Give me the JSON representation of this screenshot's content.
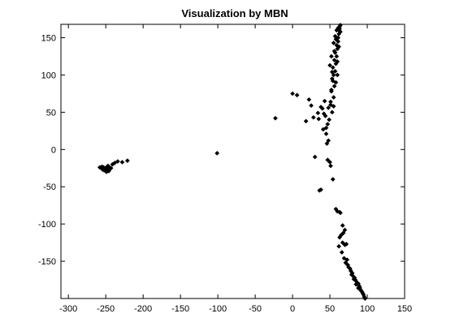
{
  "chart_data": {
    "type": "scatter",
    "title": "Visualization by MBN",
    "xlabel": "",
    "ylabel": "",
    "xlim": [
      -310,
      150
    ],
    "ylim": [
      -200,
      168
    ],
    "xticks": [
      -300,
      -250,
      -200,
      -150,
      -100,
      -50,
      0,
      50,
      100,
      150
    ],
    "yticks": [
      150,
      100,
      50,
      0,
      -50,
      -100,
      -150
    ],
    "xtick_labels": [
      "-300",
      "-250",
      "-200",
      "-150",
      "-100",
      "-50",
      "0",
      "50",
      "100",
      "150"
    ],
    "ytick_labels": [
      "150",
      "100",
      "50",
      "0",
      "-50",
      "-100",
      "-150"
    ],
    "grid": false,
    "marker": "diamond",
    "marker_color": "#000000",
    "series": [
      {
        "points": [
          [
            -258,
            -24
          ],
          [
            -256,
            -25
          ],
          [
            -255,
            -23
          ],
          [
            -254,
            -26
          ],
          [
            -253,
            -24
          ],
          [
            -252,
            -25
          ],
          [
            -251,
            -27
          ],
          [
            -250,
            -26
          ],
          [
            -249,
            -24
          ],
          [
            -248,
            -28
          ],
          [
            -247,
            -25
          ],
          [
            -246,
            -27
          ],
          [
            -245,
            -26
          ],
          [
            -252,
            -28
          ],
          [
            -250,
            -29
          ],
          [
            -248,
            -23
          ],
          [
            -246,
            -29
          ],
          [
            -244,
            -26
          ],
          [
            -247,
            -22
          ],
          [
            -243,
            -25
          ],
          [
            -241,
            -20
          ],
          [
            -238,
            -18
          ],
          [
            -234,
            -16
          ],
          [
            -228,
            -17
          ],
          [
            -221,
            -15
          ],
          [
            -254,
            -27
          ],
          [
            -249,
            -30
          ],
          [
            -245,
            -24
          ],
          [
            -101,
            -5
          ],
          [
            -23,
            42
          ],
          [
            0,
            75
          ],
          [
            6,
            73
          ],
          [
            18,
            38
          ],
          [
            22,
            67
          ],
          [
            25,
            59
          ],
          [
            28,
            43
          ],
          [
            30,
            -10
          ],
          [
            34,
            49
          ],
          [
            35,
            41
          ],
          [
            36,
            -55
          ],
          [
            38,
            -54
          ],
          [
            38,
            57
          ],
          [
            40,
            55
          ],
          [
            41,
            27
          ],
          [
            42,
            48
          ],
          [
            43,
            65
          ],
          [
            44,
            45
          ],
          [
            45,
            21
          ],
          [
            45,
            29
          ],
          [
            46,
            8
          ],
          [
            47,
            34
          ],
          [
            47,
            -14
          ],
          [
            48,
            12
          ],
          [
            48,
            56
          ],
          [
            49,
            40
          ],
          [
            50,
            -17
          ],
          [
            51,
            -22
          ],
          [
            51,
            60
          ],
          [
            52,
            80
          ],
          [
            53,
            50
          ],
          [
            53,
            95
          ],
          [
            54,
            -40
          ],
          [
            54,
            110
          ],
          [
            55,
            70
          ],
          [
            55,
            100
          ],
          [
            56,
            85
          ],
          [
            56,
            120
          ],
          [
            57,
            105
          ],
          [
            57,
            130
          ],
          [
            58,
            90
          ],
          [
            58,
            115
          ],
          [
            59,
            125
          ],
          [
            59,
            140
          ],
          [
            60,
            100
          ],
          [
            60,
            135
          ],
          [
            61,
            145
          ],
          [
            61,
            150
          ],
          [
            62,
            155
          ],
          [
            62,
            160
          ],
          [
            63,
            162
          ],
          [
            63,
            165
          ],
          [
            64,
            158
          ],
          [
            55,
            143
          ],
          [
            52,
            125
          ],
          [
            58,
            148
          ],
          [
            50,
            113
          ],
          [
            54,
            92
          ],
          [
            53,
            104
          ],
          [
            56,
            132
          ],
          [
            60,
            118
          ],
          [
            62,
            138
          ],
          [
            57,
            152
          ],
          [
            52,
            78
          ],
          [
            55,
            58
          ],
          [
            51,
            64
          ],
          [
            59,
            160
          ],
          [
            61,
            163
          ],
          [
            64,
            167
          ],
          [
            58,
            -80
          ],
          [
            60,
            -83
          ],
          [
            63,
            -84
          ],
          [
            64,
            -85
          ],
          [
            67,
            -102
          ],
          [
            68,
            -112
          ],
          [
            65,
            -115
          ],
          [
            63,
            -118
          ],
          [
            70,
            -108
          ],
          [
            67,
            -125
          ],
          [
            70,
            -128
          ],
          [
            62,
            -130
          ],
          [
            72,
            -127
          ],
          [
            66,
            -138
          ],
          [
            69,
            -146
          ],
          [
            73,
            -148
          ],
          [
            71,
            -152
          ],
          [
            75,
            -158
          ],
          [
            77,
            -160
          ],
          [
            78,
            -163
          ],
          [
            80,
            -166
          ],
          [
            81,
            -170
          ],
          [
            83,
            -172
          ],
          [
            84,
            -175
          ],
          [
            86,
            -178
          ],
          [
            88,
            -180
          ],
          [
            89,
            -183
          ],
          [
            90,
            -185
          ],
          [
            91,
            -188
          ],
          [
            93,
            -191
          ],
          [
            94,
            -193
          ],
          [
            95,
            -195
          ],
          [
            96,
            -198
          ],
          [
            97,
            -200
          ],
          [
            79,
            -168
          ],
          [
            82,
            -174
          ],
          [
            85,
            -181
          ],
          [
            88,
            -186
          ],
          [
            92,
            -190
          ],
          [
            74,
            -155
          ]
        ]
      }
    ]
  }
}
